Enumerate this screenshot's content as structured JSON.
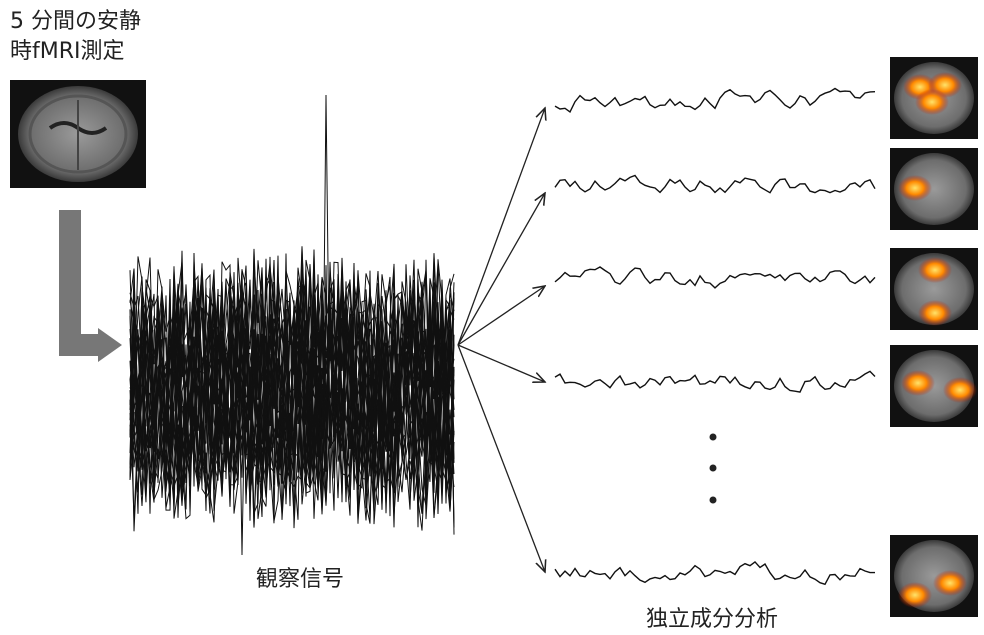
{
  "title": {
    "lines": [
      "5 分間の安静",
      "時fMRI測定"
    ]
  },
  "labels": {
    "observed": "観察信号",
    "ica": "独立成分分析"
  }
}
